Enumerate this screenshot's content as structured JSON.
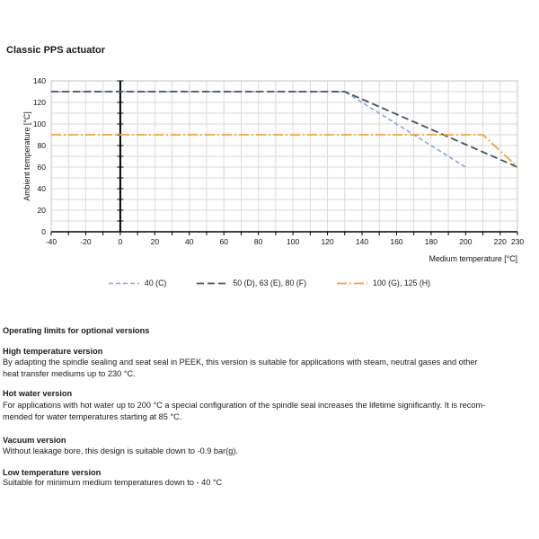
{
  "title": "Classic PPS actuator",
  "chart_data": {
    "type": "line",
    "title": "",
    "xlabel": "Medium temperature [°C]",
    "ylabel": "Ambient temperature [°C]",
    "xlim": [
      -40,
      230
    ],
    "ylim": [
      0,
      140
    ],
    "x_ticks": [
      -40,
      -20,
      0,
      20,
      40,
      60,
      80,
      100,
      120,
      140,
      160,
      180,
      200,
      220,
      230
    ],
    "y_ticks": [
      0,
      20,
      40,
      60,
      80,
      100,
      120,
      140
    ],
    "grid": true,
    "grid_step": 10,
    "legend_position": "bottom",
    "colors": {
      "grid": "#dadada",
      "axis": "#000000",
      "border": "#c4c4c4"
    },
    "series": [
      {
        "name": "40 (C)",
        "color": "#8AA7DA",
        "dash": "5 3",
        "width": 1.6,
        "points": [
          [
            -40,
            130
          ],
          [
            130,
            130
          ],
          [
            200,
            60
          ]
        ]
      },
      {
        "name": "50 (D), 63 (E), 80 (F)",
        "color": "#45525F",
        "dash": "8 4",
        "width": 1.8,
        "points": [
          [
            -40,
            130
          ],
          [
            130,
            130
          ],
          [
            230,
            60
          ]
        ]
      },
      {
        "name": "100 (G), 125 (H)",
        "color": "#EFA23C",
        "dash": "11 3 2 3",
        "width": 1.8,
        "points": [
          [
            -40,
            90
          ],
          [
            210,
            90
          ],
          [
            230,
            60
          ]
        ]
      }
    ]
  },
  "sections": {
    "heading": "Operating limits for optional versions",
    "items": [
      {
        "heading": "High temperature version",
        "body": [
          "By adapting the spindle sealing and seat seal in PEEK, this version is suitable for applications with steam, neutral gases and other",
          "heat transfer mediums up to 230 °C."
        ]
      },
      {
        "heading": "Hot water version",
        "body": [
          "For applications with hot water up to 200 °C a special configuration of the spindle seal increases the lifetime significantly. It is recom-",
          "mended for water temperatures starting at 85 °C."
        ]
      },
      {
        "heading": "Vacuum version",
        "body": [
          "Without leakage bore, this design is suitable down to -0.9 bar(g)."
        ]
      },
      {
        "heading": "Low temperature version",
        "body": [
          "Suitable for minimum medium temperatures down to - 40 °C"
        ]
      }
    ]
  }
}
